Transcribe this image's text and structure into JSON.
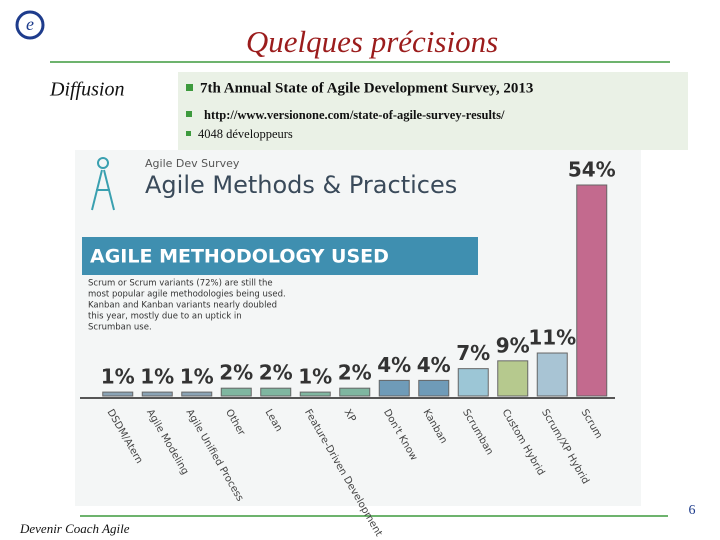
{
  "slide": {
    "title": "Quelques précisions",
    "side_label": "Diffusion",
    "bullets": [
      "7th Annual State of Agile Development Survey, 2013",
      "http://www.versionone.com/state-of-agile-survey-results/",
      "4048 développeurs"
    ],
    "footer": "Devenir Coach Agile",
    "page_number": "6"
  },
  "chart_data": {
    "type": "bar",
    "supertitle": "Agile Dev Survey",
    "title": "Agile Methods & Practices",
    "subtitle": "AGILE METHODOLOGY USED",
    "description": [
      "Scrum or Scrum variants (72%) are still the",
      "most popular agile methodologies being used.",
      "Kanban and Kanban variants nearly doubled",
      "this year, mostly due to an uptick in",
      "Scrumban use."
    ],
    "categories": [
      "DSDM/Atern",
      "Agile Modeling",
      "Agile Unified Process",
      "Other",
      "Lean",
      "Feature-Driven Development",
      "XP",
      "Don't Know",
      "Kanban",
      "Scrumban",
      "Custom Hybrid",
      "Scrum/XP Hybrid",
      "Scrum"
    ],
    "values": [
      1,
      1,
      1,
      2,
      2,
      1,
      2,
      4,
      4,
      7,
      9,
      11,
      54
    ],
    "value_labels": [
      "1%",
      "1%",
      "1%",
      "2%",
      "2%",
      "1%",
      "2%",
      "4%",
      "4%",
      "7%",
      "9%",
      "11%",
      "54%"
    ],
    "colors": [
      "#8aa3b5",
      "#8aa3b5",
      "#8aa3b5",
      "#7fb6a0",
      "#7fb6a0",
      "#7fb6a0",
      "#7fb6a0",
      "#6f9bb8",
      "#6f9bb8",
      "#9cc6d6",
      "#b6c98e",
      "#a8c4d4",
      "#c36a8e"
    ],
    "ylim": [
      0,
      54
    ]
  }
}
